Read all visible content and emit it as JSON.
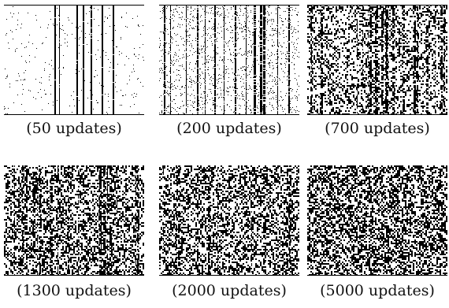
{
  "panels": [
    {
      "caption": "(50 updates)",
      "updates": 50
    },
    {
      "caption": "(200 updates)",
      "updates": 200
    },
    {
      "caption": "(700 updates)",
      "updates": 700
    },
    {
      "caption": "(1300 updates)",
      "updates": 1300
    },
    {
      "caption": "(2000 updates)",
      "updates": 2000
    },
    {
      "caption": "(5000 updates)",
      "updates": 5000
    }
  ]
}
